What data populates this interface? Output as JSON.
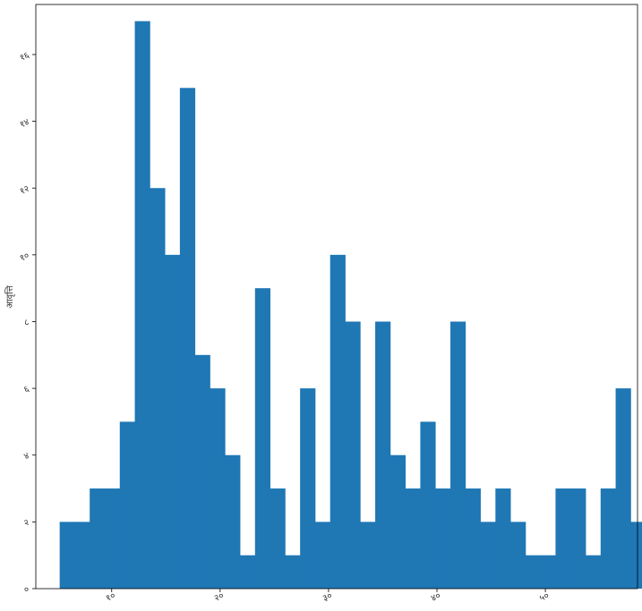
{
  "chart_data": {
    "type": "bar",
    "title": "",
    "ylabel": "आवृत्ति",
    "xlabel": "",
    "color": "#1f77b4",
    "xlim": [
      3,
      58.5
    ],
    "ylim": [
      0,
      17.5
    ],
    "bin_start": 5.2,
    "bin_width": 1.386,
    "values": [
      2,
      2,
      3,
      3,
      5,
      17,
      12,
      10,
      15,
      7,
      6,
      4,
      1,
      9,
      3,
      1,
      6,
      2,
      10,
      8,
      2,
      8,
      4,
      3,
      5,
      3,
      8,
      3,
      2,
      3,
      2,
      1,
      1,
      3,
      3,
      1,
      3,
      6,
      2,
      4
    ],
    "x_ticks": [
      10,
      20,
      30,
      40,
      50,
      60
    ],
    "x_tick_labels": [
      "१०",
      "२०",
      "३०",
      "४०",
      "५०",
      "६०"
    ],
    "y_ticks": [
      0,
      2,
      4,
      6,
      8,
      10,
      12,
      14,
      16
    ],
    "y_tick_labels": [
      "०",
      "२",
      "४",
      "६",
      "८",
      "१०",
      "१२",
      "१४",
      "१६"
    ],
    "grid": false,
    "legend": "none"
  }
}
